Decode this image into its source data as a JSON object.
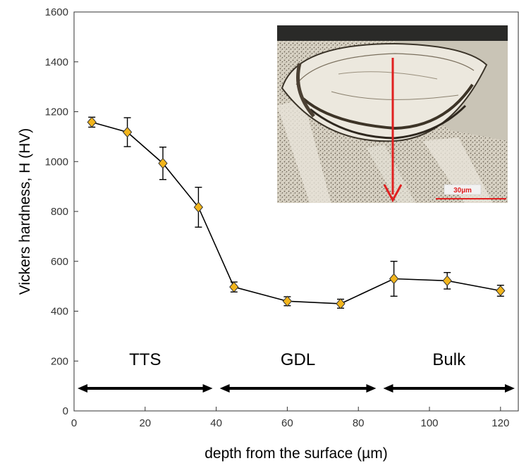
{
  "chart_data": {
    "type": "line",
    "xlabel": "depth from the surface (µm)",
    "ylabel": "Vickers hardness, H (HV)",
    "xlim": [
      0,
      125
    ],
    "ylim": [
      0,
      1600
    ],
    "xticks": [
      0,
      20,
      40,
      60,
      80,
      100,
      120
    ],
    "yticks": [
      0,
      200,
      400,
      600,
      800,
      1000,
      1200,
      1400,
      1600
    ],
    "grid": false,
    "series": [
      {
        "x": [
          5,
          15,
          25,
          35,
          45,
          60,
          75,
          90,
          105,
          120
        ],
        "y": [
          1158,
          1118,
          993,
          817,
          497,
          440,
          430,
          530,
          522,
          482
        ],
        "err": [
          20,
          58,
          65,
          80,
          20,
          18,
          18,
          70,
          33,
          22
        ],
        "color": "#000000",
        "marker": "diamond",
        "marker_color": "#f2b51c"
      }
    ],
    "regions": [
      {
        "label": "TTS",
        "from": 1,
        "to": 39
      },
      {
        "label": "GDL",
        "from": 41,
        "to": 85
      },
      {
        "label": "Bulk",
        "from": 87,
        "to": 124
      }
    ],
    "inset": {
      "description": "micrograph",
      "scale_bar_label": "30µm",
      "arrow_color": "#e02020"
    }
  }
}
